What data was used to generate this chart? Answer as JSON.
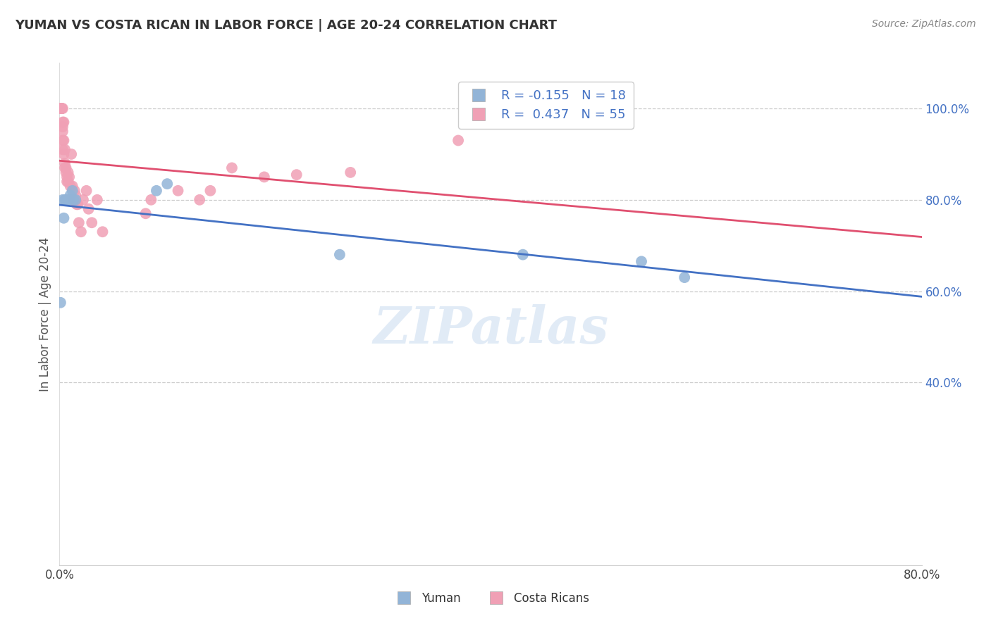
{
  "title": "YUMAN VS COSTA RICAN IN LABOR FORCE | AGE 20-24 CORRELATION CHART",
  "source": "Source: ZipAtlas.com",
  "ylabel": "In Labor Force | Age 20-24",
  "xlim": [
    0.0,
    0.8
  ],
  "ylim": [
    0.0,
    1.1
  ],
  "ytick_right_labels": [
    "100.0%",
    "80.0%",
    "60.0%",
    "40.0%"
  ],
  "ytick_right_values": [
    1.0,
    0.8,
    0.6,
    0.4
  ],
  "yuman_color": "#92b4d7",
  "costa_rican_color": "#f0a0b5",
  "trend_yuman_color": "#4472c4",
  "trend_costa_rican_color": "#e05070",
  "watermark": "ZIPatlas",
  "legend_R_yuman": "-0.155",
  "legend_N_yuman": "18",
  "legend_R_costa": "0.437",
  "legend_N_costa": "55",
  "yuman_x": [
    0.001,
    0.003,
    0.004,
    0.005,
    0.006,
    0.007,
    0.008,
    0.009,
    0.01,
    0.012,
    0.013,
    0.015,
    0.09,
    0.1,
    0.26,
    0.43,
    0.54,
    0.58
  ],
  "yuman_y": [
    0.575,
    0.8,
    0.76,
    0.8,
    0.8,
    0.8,
    0.8,
    0.8,
    0.81,
    0.82,
    0.8,
    0.8,
    0.82,
    0.835,
    0.68,
    0.68,
    0.665,
    0.63
  ],
  "costa_rican_x": [
    0.001,
    0.001,
    0.001,
    0.001,
    0.001,
    0.002,
    0.002,
    0.002,
    0.002,
    0.002,
    0.003,
    0.003,
    0.003,
    0.003,
    0.003,
    0.003,
    0.004,
    0.004,
    0.004,
    0.005,
    0.005,
    0.005,
    0.006,
    0.006,
    0.007,
    0.007,
    0.008,
    0.008,
    0.009,
    0.01,
    0.011,
    0.012,
    0.013,
    0.014,
    0.015,
    0.016,
    0.017,
    0.018,
    0.02,
    0.022,
    0.025,
    0.027,
    0.03,
    0.035,
    0.04,
    0.08,
    0.085,
    0.11,
    0.13,
    0.14,
    0.16,
    0.19,
    0.22,
    0.27,
    0.37
  ],
  "costa_rican_y": [
    1.0,
    1.0,
    1.0,
    1.0,
    1.0,
    1.0,
    1.0,
    1.0,
    1.0,
    1.0,
    1.0,
    0.97,
    0.96,
    0.95,
    0.93,
    0.91,
    0.97,
    0.93,
    0.9,
    0.91,
    0.88,
    0.87,
    0.87,
    0.86,
    0.85,
    0.84,
    0.86,
    0.84,
    0.85,
    0.83,
    0.9,
    0.83,
    0.8,
    0.82,
    0.81,
    0.79,
    0.79,
    0.75,
    0.73,
    0.8,
    0.82,
    0.78,
    0.75,
    0.8,
    0.73,
    0.77,
    0.8,
    0.82,
    0.8,
    0.82,
    0.87,
    0.85,
    0.855,
    0.86,
    0.93
  ],
  "background_color": "#ffffff",
  "grid_color": "#cccccc",
  "title_color": "#333333",
  "axis_label_color": "#555555",
  "right_tick_color": "#4472c4",
  "bottom_legend_yuman": "Yuman",
  "bottom_legend_costa": "Costa Ricans"
}
